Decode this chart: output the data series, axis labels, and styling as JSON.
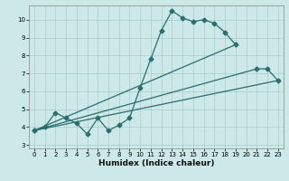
{
  "bg_color": "#cce8e8",
  "grid_color": "#aacccc",
  "line_color": "#2a6e6e",
  "xlabel": "Humidex (Indice chaleur)",
  "xlim": [
    -0.5,
    23.5
  ],
  "ylim": [
    2.8,
    10.8
  ],
  "yticks": [
    3,
    4,
    5,
    6,
    7,
    8,
    9,
    10
  ],
  "xticks": [
    0,
    1,
    2,
    3,
    4,
    5,
    6,
    7,
    8,
    9,
    10,
    11,
    12,
    13,
    14,
    15,
    16,
    17,
    18,
    19,
    20,
    21,
    22,
    23
  ],
  "line1_x": [
    0,
    1,
    2,
    3,
    4,
    5,
    6,
    7,
    8,
    9,
    10,
    11,
    12,
    13,
    14,
    15,
    16,
    17,
    18,
    19
  ],
  "line1_y": [
    3.8,
    4.0,
    4.8,
    4.5,
    4.2,
    3.6,
    4.5,
    3.8,
    4.1,
    4.5,
    6.2,
    7.8,
    9.4,
    10.5,
    10.1,
    9.9,
    10.0,
    9.8,
    9.3,
    8.6
  ],
  "line2_x": [
    0,
    21,
    22,
    23
  ],
  "line2_y": [
    3.8,
    7.25,
    7.25,
    6.6
  ],
  "line3_x": [
    0,
    23
  ],
  "line3_y": [
    3.8,
    6.6
  ],
  "line4_x": [
    0,
    23
  ],
  "line4_y": [
    3.5,
    6.75
  ]
}
